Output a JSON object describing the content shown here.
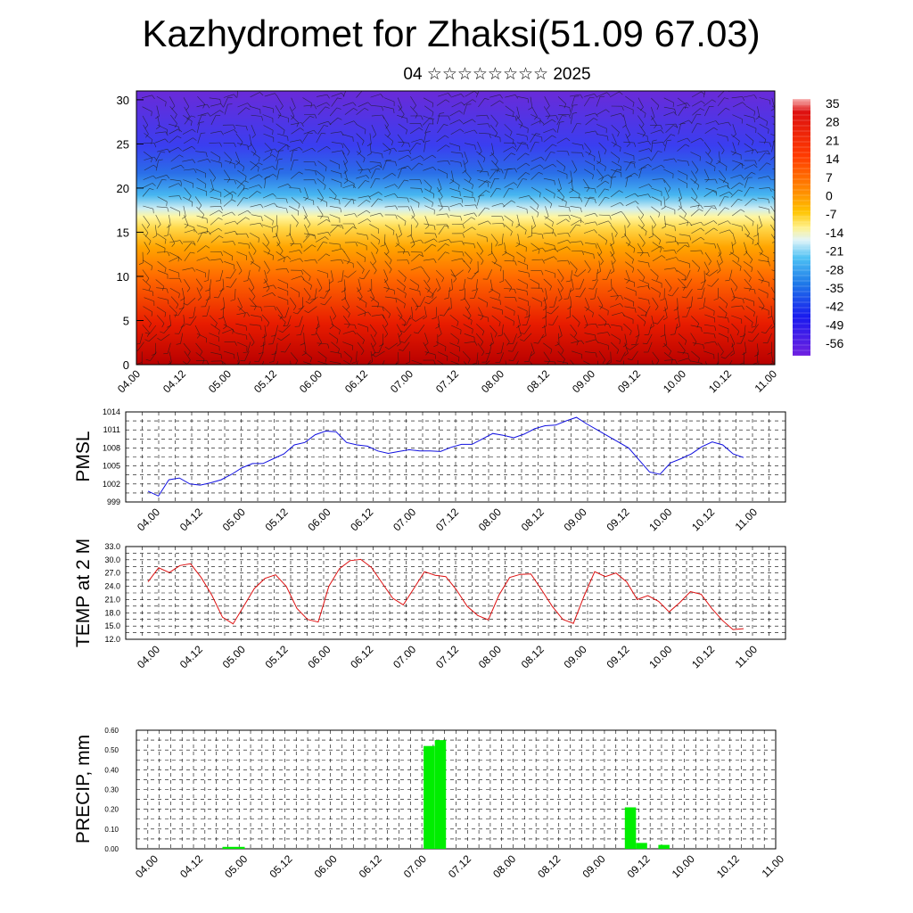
{
  "header": {
    "title": "Kazhydromet for Zhaksi(51.09 67.03)",
    "subtitle": "04 ☆☆☆☆☆☆☆☆ 2025"
  },
  "colors": {
    "pmsl_line": "#1010e0",
    "temp_line": "#dd1010",
    "precip_bar": "#00ee00",
    "grid": "#000000"
  },
  "chart_data": [
    {
      "id": "cross-section",
      "type": "heatmap",
      "title": "",
      "xlabel": "",
      "ylabel": "",
      "x_tick_labels": [
        "04.00",
        "04.12",
        "05.00",
        "05.12",
        "06.00",
        "06.12",
        "07.00",
        "07.12",
        "08.00",
        "08.12",
        "09.00",
        "09.12",
        "10.00",
        "10.12",
        "11.00"
      ],
      "y_ticks": [
        0,
        5,
        10,
        15,
        20,
        25,
        30
      ],
      "ylim": [
        0,
        31
      ],
      "colorbar_labels": [
        "35",
        "28",
        "21",
        "14",
        "7",
        "0",
        "-7",
        "-14",
        "-21",
        "-28",
        "-35",
        "-42",
        "-49",
        "-56"
      ],
      "temperature_profile_by_level": [
        {
          "level": 0,
          "value": 30
        },
        {
          "level": 5,
          "value": 26
        },
        {
          "level": 10,
          "value": 18
        },
        {
          "level": 13,
          "value": 9
        },
        {
          "level": 15,
          "value": 0
        },
        {
          "level": 17,
          "value": -14
        },
        {
          "level": 20,
          "value": -30
        },
        {
          "level": 24,
          "value": -45
        },
        {
          "level": 28,
          "value": -55
        },
        {
          "level": 31,
          "value": -60
        }
      ],
      "overlay": "wind barbs"
    },
    {
      "id": "pmsl",
      "type": "line",
      "ylabel": "PMSL",
      "x_tick_labels": [
        "04.00",
        "04.12",
        "05.00",
        "05.12",
        "06.00",
        "06.12",
        "07.00",
        "07.12",
        "08.00",
        "08.12",
        "09.00",
        "09.12",
        "10.00",
        "10.12",
        "11.00"
      ],
      "y_tick_labels": [
        "999",
        "1002",
        "1005",
        "1008",
        "1011",
        "1014"
      ],
      "ylim": [
        999,
        1014
      ],
      "grid": true,
      "x_step_hours": 3,
      "series": [
        {
          "values": [
            1000.8,
            1000.0,
            1002.7,
            1003.0,
            1002.0,
            1001.8,
            1002.2,
            1002.7,
            1003.6,
            1004.7,
            1005.4,
            1005.4,
            1006.2,
            1007.0,
            1008.5,
            1008.9,
            1010.2,
            1010.8,
            1010.7,
            1008.9,
            1008.5,
            1008.3,
            1007.5,
            1007.1,
            1007.4,
            1007.7,
            1007.5,
            1007.5,
            1007.4,
            1008.1,
            1008.6,
            1008.6,
            1009.5,
            1010.4,
            1010.1,
            1009.7,
            1010.3,
            1011.2,
            1011.7,
            1011.8,
            1012.5,
            1013.1,
            1012.0,
            1011.0,
            1010.0,
            1009.0,
            1008.0,
            1006.0,
            1004.0,
            1003.6,
            1005.5,
            1006.2,
            1007.0,
            1008.2,
            1009.0,
            1008.5,
            1007.0,
            1006.4
          ]
        }
      ]
    },
    {
      "id": "temp2m",
      "type": "line",
      "ylabel": "TEMP at 2 M",
      "x_tick_labels": [
        "04.00",
        "04.12",
        "05.00",
        "05.12",
        "06.00",
        "06.12",
        "07.00",
        "07.12",
        "08.00",
        "08.12",
        "09.00",
        "09.12",
        "10.00",
        "10.12",
        "11.00"
      ],
      "y_tick_labels": [
        "12.0",
        "15.0",
        "18.0",
        "21.0",
        "24.0",
        "27.0",
        "30.0",
        "33.0"
      ],
      "ylim": [
        12,
        33
      ],
      "grid": true,
      "x_step_hours": 3,
      "series": [
        {
          "values": [
            25.0,
            28.2,
            27.1,
            28.7,
            29.1,
            26.0,
            22.0,
            17.0,
            15.5,
            19.5,
            23.5,
            25.8,
            26.6,
            24.0,
            19.0,
            16.5,
            15.9,
            24.0,
            28.0,
            29.8,
            30.1,
            28.3,
            24.8,
            21.3,
            19.8,
            23.5,
            27.3,
            26.5,
            26.2,
            23.2,
            19.5,
            17.4,
            16.4,
            22.0,
            26.0,
            26.7,
            26.8,
            23.2,
            19.5,
            16.5,
            15.6,
            21.8,
            27.3,
            26.2,
            27.0,
            25.0,
            21.0,
            21.9,
            20.6,
            18.2,
            20.3,
            22.8,
            22.2,
            19.0,
            16.3,
            14.2,
            14.4
          ]
        }
      ]
    },
    {
      "id": "precip",
      "type": "bar",
      "ylabel": "PRECIP, mm",
      "x_tick_labels": [
        "04.00",
        "04.12",
        "05.00",
        "05.12",
        "06.00",
        "06.12",
        "07.00",
        "07.12",
        "08.00",
        "08.12",
        "09.00",
        "09.12",
        "10.00",
        "10.12",
        "11.00"
      ],
      "y_tick_labels": [
        "0.00",
        "0.10",
        "0.20",
        "0.30",
        "0.40",
        "0.50",
        "0.60"
      ],
      "ylim": [
        0,
        0.6
      ],
      "grid": true,
      "x_step_hours": 3,
      "bars": [
        {
          "time": "04.21",
          "value": 0.01
        },
        {
          "time": "04.24",
          "value": 0.01
        },
        {
          "time": "07.03",
          "value": 0.52
        },
        {
          "time": "07.06",
          "value": 0.55
        },
        {
          "time": "09.09",
          "value": 0.21
        },
        {
          "time": "09.12",
          "value": 0.03
        },
        {
          "time": "09.18",
          "value": 0.02
        }
      ]
    }
  ]
}
